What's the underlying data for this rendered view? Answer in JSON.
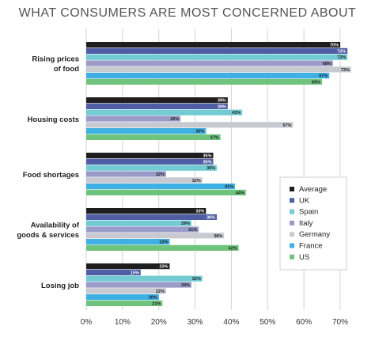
{
  "chart_data": {
    "type": "bar",
    "orientation": "horizontal",
    "title": "WHAT CONSUMERS ARE MOST CONCERNED ABOUT",
    "categories": [
      [
        "Rising prices",
        "of food"
      ],
      [
        "Housing costs"
      ],
      [
        "Food shortages"
      ],
      [
        "Availability of",
        "goods & services"
      ],
      [
        "Losing job"
      ]
    ],
    "series": [
      {
        "name": "Average",
        "color": "#1e1e1e",
        "values": [
          70,
          39,
          35,
          33,
          23
        ]
      },
      {
        "name": "UK",
        "color": "#4f5ea4",
        "values": [
          72,
          39,
          35,
          36,
          15
        ]
      },
      {
        "name": "Spain",
        "color": "#72cbd3",
        "values": [
          72,
          43,
          36,
          29,
          32
        ]
      },
      {
        "name": "Italy",
        "color": "#9b9bc9",
        "values": [
          68,
          26,
          22,
          31,
          29
        ]
      },
      {
        "name": "Germany",
        "color": "#c9c9d2",
        "values": [
          73,
          57,
          32,
          38,
          22
        ]
      },
      {
        "name": "France",
        "color": "#3eb0e3",
        "values": [
          67,
          33,
          41,
          23,
          20
        ]
      },
      {
        "name": "US",
        "color": "#6ec47c",
        "values": [
          65,
          37,
          44,
          42,
          21
        ]
      }
    ],
    "value_labels": [
      [
        "70%",
        "39%",
        "35%",
        "33%",
        "23%"
      ],
      [
        "72%",
        "39%",
        "35%",
        "36%",
        "15%"
      ],
      [
        "72%",
        "43%",
        "36%",
        "29%",
        "32%"
      ],
      [
        "68%",
        "26%",
        "22%",
        "31%",
        "29%"
      ],
      [
        "73%",
        "57%",
        "32%",
        "38%",
        "22%"
      ],
      [
        "67%",
        "33%",
        "41%",
        "23%",
        "20%"
      ],
      [
        "65%",
        "37%",
        "44%",
        "42%",
        "21%"
      ]
    ],
    "xlim": [
      0,
      70
    ],
    "xticks": [
      0,
      10,
      20,
      30,
      40,
      50,
      60,
      70
    ],
    "xtick_labels": [
      "0%",
      "10%",
      "20%",
      "30%",
      "40%",
      "50%",
      "60%",
      "70%"
    ],
    "grid": "vertical",
    "legend": "right",
    "label_color_dark": "#1e1e1e",
    "label_color_light": "#ffffff"
  }
}
